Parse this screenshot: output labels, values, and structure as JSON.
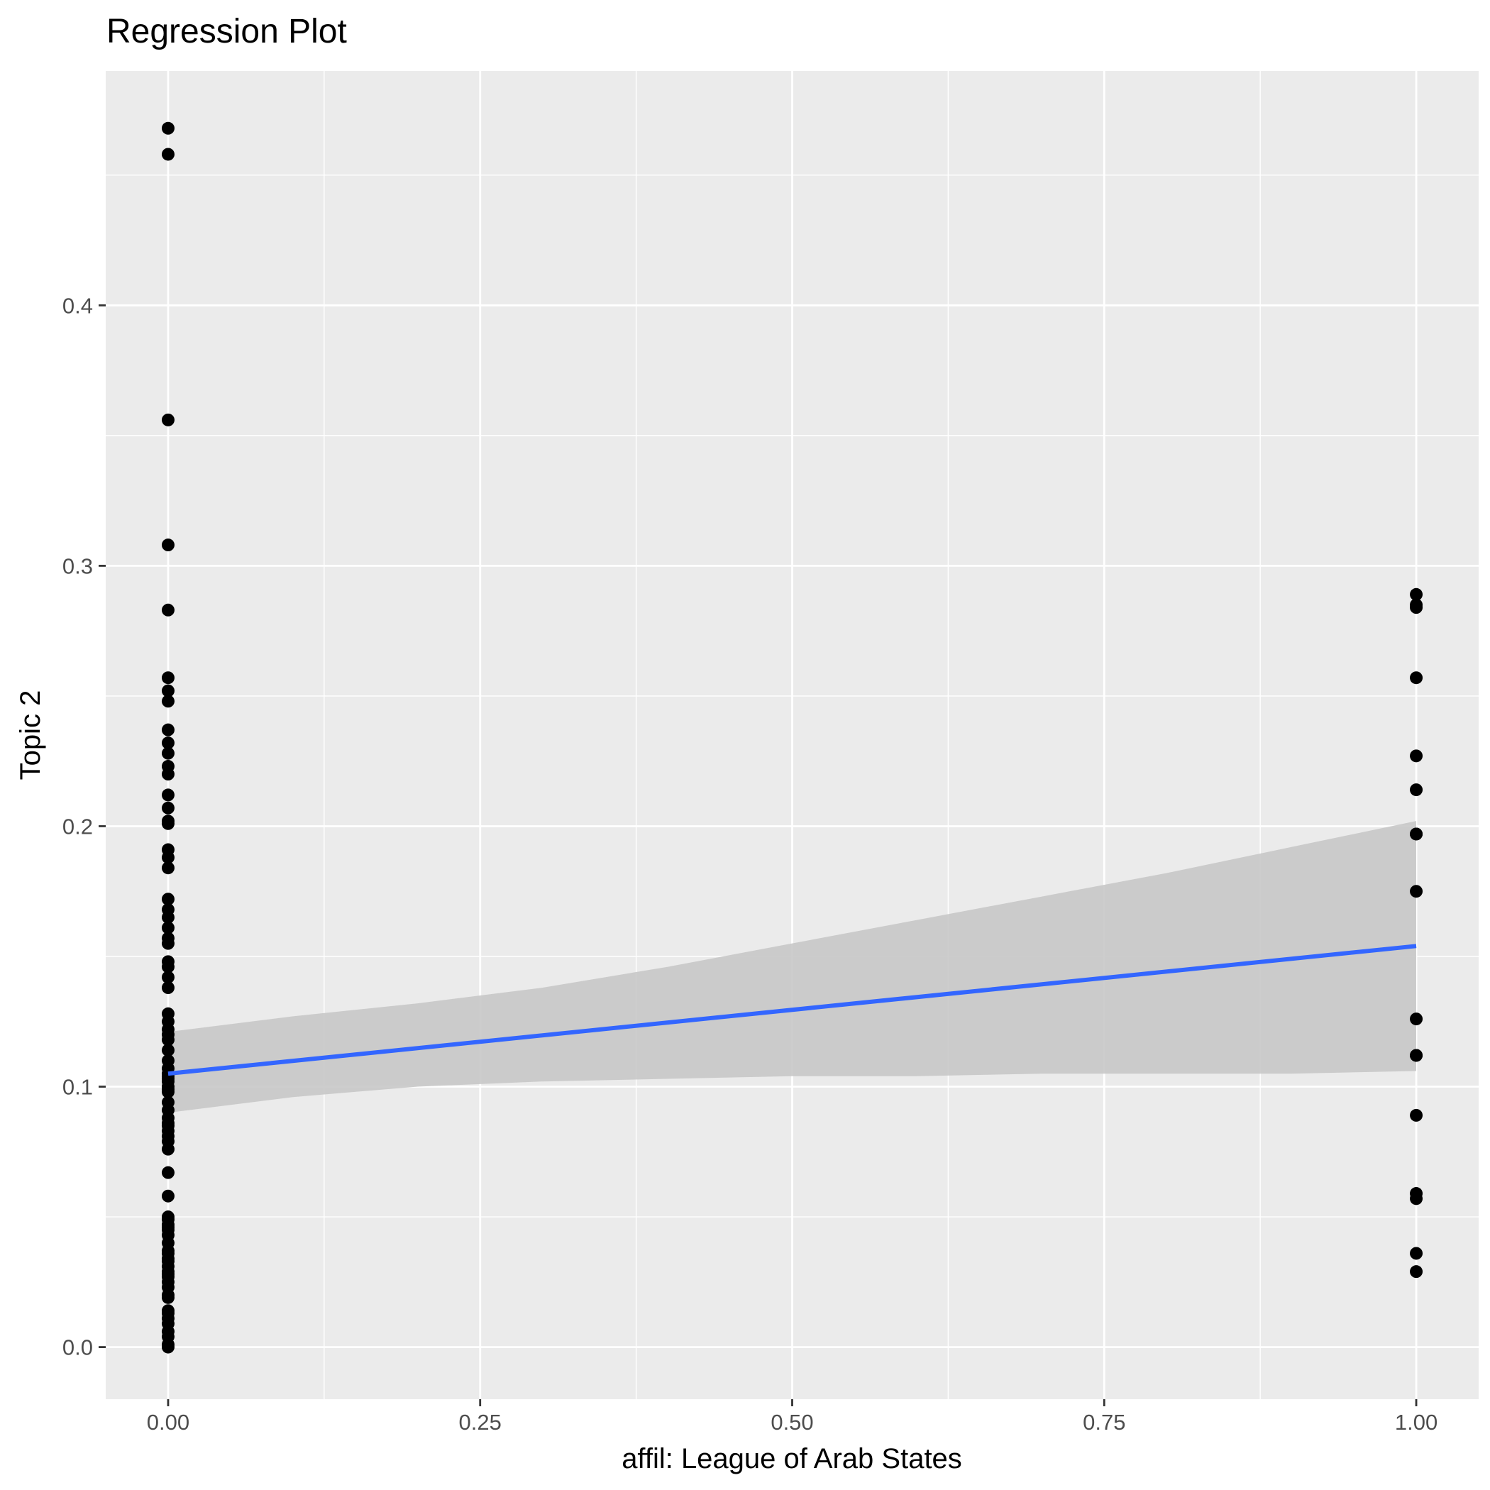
{
  "chart_data": {
    "type": "scatter",
    "title": "Regression Plot",
    "xlabel": "affil: League of Arab States",
    "ylabel": "Topic 2",
    "xlim": [
      -0.05,
      1.05
    ],
    "ylim": [
      -0.02,
      0.49
    ],
    "x_ticks": [
      0.0,
      0.25,
      0.5,
      0.75,
      1.0
    ],
    "x_tick_labels": [
      "0.00",
      "0.25",
      "0.50",
      "0.75",
      "1.00"
    ],
    "y_ticks": [
      0.0,
      0.1,
      0.2,
      0.3,
      0.4
    ],
    "y_tick_labels": [
      "0.0",
      "0.1",
      "0.2",
      "0.3",
      "0.4"
    ],
    "grid": true,
    "colors": {
      "panel": "#ebebeb",
      "grid": "#ffffff",
      "points": "#000000",
      "line": "#3366ff",
      "ribbon": "#c8c8c8"
    },
    "points": {
      "x": [
        0,
        0,
        0,
        0,
        0,
        0,
        0,
        0,
        0,
        0,
        0,
        0,
        0,
        0,
        0,
        0,
        0,
        0,
        0,
        0,
        0,
        0,
        0,
        0,
        0,
        0,
        0,
        0,
        0,
        0,
        0,
        0,
        0,
        0,
        0,
        0,
        0,
        0,
        0,
        0,
        0,
        0,
        0,
        0,
        0,
        0,
        0,
        0,
        0,
        0,
        0,
        0,
        0,
        0,
        0,
        0,
        0,
        0,
        0,
        0,
        0,
        0,
        0,
        0,
        0,
        0,
        0,
        0,
        0,
        0,
        0,
        0,
        0,
        0,
        0,
        0,
        0,
        0,
        0,
        0,
        0,
        0,
        0,
        1,
        1,
        1,
        1,
        1,
        1,
        1,
        1,
        1,
        1,
        1,
        1,
        1,
        1,
        1,
        1,
        1
      ],
      "y": [
        0.468,
        0.458,
        0.356,
        0.308,
        0.283,
        0.257,
        0.252,
        0.248,
        0.237,
        0.232,
        0.228,
        0.223,
        0.22,
        0.212,
        0.207,
        0.202,
        0.201,
        0.191,
        0.188,
        0.184,
        0.172,
        0.168,
        0.165,
        0.161,
        0.157,
        0.155,
        0.148,
        0.146,
        0.142,
        0.138,
        0.128,
        0.125,
        0.122,
        0.12,
        0.118,
        0.114,
        0.11,
        0.107,
        0.105,
        0.103,
        0.102,
        0.1,
        0.098,
        0.091,
        0.088,
        0.086,
        0.083,
        0.081,
        0.079,
        0.067,
        0.058,
        0.049,
        0.047,
        0.045,
        0.043,
        0.04,
        0.037,
        0.034,
        0.031,
        0.028,
        0.025,
        0.02,
        0.014,
        0.011,
        0.006,
        0.0,
        0.05,
        0.046,
        0.036,
        0.033,
        0.029,
        0.027,
        0.023,
        0.019,
        0.013,
        0.009,
        0.004,
        0.001,
        0.104,
        0.099,
        0.094,
        0.085,
        0.076,
        0.289,
        0.284,
        0.257,
        0.227,
        0.214,
        0.197,
        0.175,
        0.126,
        0.112,
        0.089,
        0.059,
        0.057,
        0.036,
        0.029,
        0.285,
        0.197,
        0.112
      ],
      "note_overlap": ""
    },
    "regression": {
      "x": [
        0.0,
        1.0
      ],
      "y": [
        0.105,
        0.154
      ]
    },
    "confidence_band": {
      "x": [
        0.0,
        0.1,
        0.2,
        0.3,
        0.4,
        0.5,
        0.6,
        0.7,
        0.8,
        0.9,
        1.0
      ],
      "upper": [
        0.121,
        0.127,
        0.132,
        0.138,
        0.146,
        0.155,
        0.164,
        0.173,
        0.182,
        0.192,
        0.202
      ],
      "lower": [
        0.09,
        0.096,
        0.1,
        0.102,
        0.103,
        0.104,
        0.104,
        0.105,
        0.105,
        0.105,
        0.106
      ]
    }
  }
}
